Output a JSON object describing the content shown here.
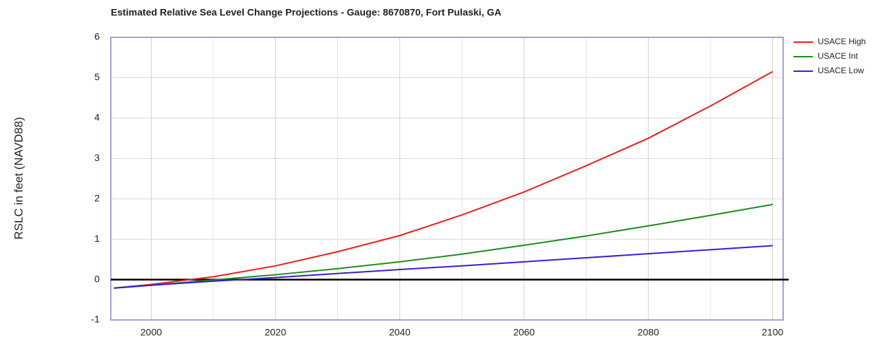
{
  "chart_data": {
    "type": "line",
    "title": "Estimated Relative Sea Level Change Projections - Gauge: 8670870, Fort Pulaski, GA",
    "y_label": "RSLC in feet (NAVD88)",
    "x": [
      1994,
      2000,
      2010,
      2020,
      2030,
      2040,
      2050,
      2060,
      2070,
      2080,
      2090,
      2100
    ],
    "series": [
      {
        "name": "USACE High",
        "color": "#ee1c1c",
        "values": [
          -0.21,
          -0.12,
          0.07,
          0.34,
          0.69,
          1.09,
          1.6,
          2.17,
          2.82,
          3.5,
          4.3,
          5.15
        ]
      },
      {
        "name": "USACE Int",
        "color": "#1a8c1a",
        "values": [
          -0.21,
          -0.14,
          -0.01,
          0.12,
          0.27,
          0.44,
          0.63,
          0.85,
          1.08,
          1.33,
          1.59,
          1.86
        ]
      },
      {
        "name": "USACE Low",
        "color": "#3a1ad8",
        "values": [
          -0.21,
          -0.14,
          -0.04,
          0.05,
          0.15,
          0.25,
          0.34,
          0.44,
          0.54,
          0.64,
          0.74,
          0.84
        ]
      }
    ],
    "xlim": [
      1993.5,
      2101.7
    ],
    "ylim": [
      -1,
      6
    ],
    "xticks": [
      2000,
      2020,
      2040,
      2060,
      2080,
      2100
    ],
    "x_minor_grid": [
      2010,
      2030,
      2050,
      2070,
      2090
    ],
    "yticks": [
      -1,
      0,
      1,
      2,
      3,
      4,
      5,
      6
    ],
    "grid": true,
    "baseline": 0,
    "legend": "right"
  }
}
